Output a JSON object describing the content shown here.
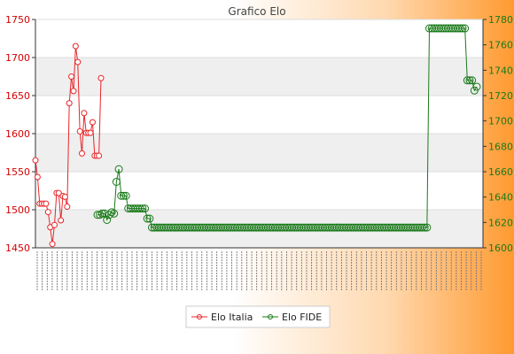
{
  "chart_data": {
    "type": "line",
    "title": "Grafico Elo",
    "y_left": {
      "min": 1450,
      "max": 1750,
      "ticks": [
        1450,
        1500,
        1550,
        1600,
        1650,
        1700,
        1750
      ]
    },
    "y_right": {
      "min": 1600,
      "max": 1780,
      "ticks": [
        1600,
        1620,
        1640,
        1660,
        1680,
        1700,
        1720,
        1740,
        1760,
        1780
      ]
    },
    "grid": true,
    "legend_position": "bottom-center",
    "series": [
      {
        "name": "Elo Italia",
        "axis": "left",
        "color": "#e8262a",
        "values": [
          1565,
          1543,
          1508,
          1508,
          1508,
          1508,
          1497,
          1477,
          1455,
          1480,
          1522,
          1522,
          1486,
          1518,
          1517,
          1504,
          1640,
          1675,
          1656,
          1715,
          1694,
          1603,
          1574,
          1627,
          1601,
          1601,
          1601,
          1615,
          1571,
          1571,
          1571,
          1673
        ]
      },
      {
        "name": "Elo FIDE",
        "axis": "right",
        "color": "#1a7a1a",
        "values": [
          1626,
          1626,
          1627,
          1627,
          1622,
          1626,
          1628,
          1627,
          1652,
          1662,
          1641,
          1641,
          1641,
          1631,
          1631,
          1631,
          1631,
          1631,
          1631,
          1631,
          1631,
          1623,
          1623,
          1616,
          1616,
          1616,
          1616,
          1616,
          1616,
          1616,
          1616,
          1616,
          1616,
          1616,
          1616,
          1616,
          1616,
          1616,
          1616,
          1616,
          1616,
          1616,
          1616,
          1616,
          1616,
          1616,
          1616,
          1616,
          1616,
          1616,
          1616,
          1616,
          1616,
          1616,
          1616,
          1616,
          1616,
          1616,
          1616,
          1616,
          1616,
          1616,
          1616,
          1616,
          1616,
          1616,
          1616,
          1616,
          1616,
          1616,
          1616,
          1616,
          1616,
          1616,
          1616,
          1616,
          1616,
          1616,
          1616,
          1616,
          1616,
          1616,
          1616,
          1616,
          1616,
          1616,
          1616,
          1616,
          1616,
          1616,
          1616,
          1616,
          1616,
          1616,
          1616,
          1616,
          1616,
          1616,
          1616,
          1616,
          1616,
          1616,
          1616,
          1616,
          1616,
          1616,
          1616,
          1616,
          1616,
          1616,
          1616,
          1616,
          1616,
          1616,
          1616,
          1616,
          1616,
          1616,
          1616,
          1616,
          1616,
          1616,
          1616,
          1616,
          1616,
          1616,
          1616,
          1616,
          1616,
          1616,
          1616,
          1616,
          1616,
          1616,
          1616,
          1616,
          1616,
          1616,
          1616,
          1616,
          1773,
          1773,
          1773,
          1773,
          1773,
          1773,
          1773,
          1773,
          1773,
          1773,
          1773,
          1773,
          1773,
          1773,
          1773,
          1773,
          1732,
          1732,
          1732,
          1724,
          1727
        ]
      }
    ]
  }
}
